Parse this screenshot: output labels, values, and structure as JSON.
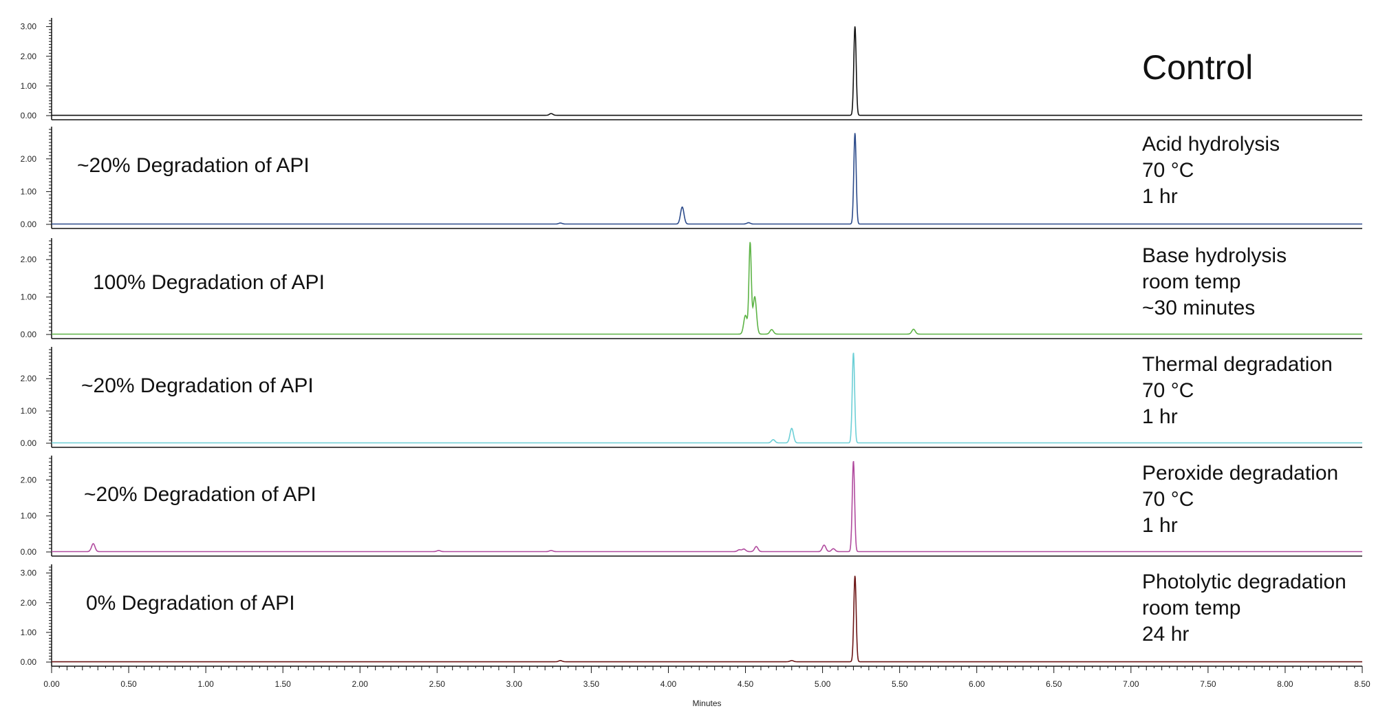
{
  "chart_data": {
    "type": "line",
    "xlabel": "Minutes",
    "xlim": [
      0,
      8.5
    ],
    "x_ticks": [
      "0.00",
      "0.50",
      "1.00",
      "1.50",
      "2.00",
      "2.50",
      "3.00",
      "3.50",
      "4.00",
      "4.50",
      "5.00",
      "5.50",
      "6.00",
      "6.50",
      "7.00",
      "7.50",
      "8.00",
      "8.50"
    ],
    "panels": [
      {
        "name": "Control",
        "conditions": [
          "Control"
        ],
        "degradation": "",
        "color": "#111111",
        "ylim": [
          0,
          3.2
        ],
        "y_ticks": [
          "0.00",
          "1.00",
          "2.00",
          "3.00"
        ],
        "peaks": [
          {
            "x": 3.24,
            "y": 0.06
          },
          {
            "x": 5.21,
            "y": 3.0
          }
        ]
      },
      {
        "name": "Acid hydrolysis",
        "conditions": [
          "Acid hydrolysis",
          "70 °C",
          "1 hr"
        ],
        "degradation": "~20% Degradation of API",
        "color": "#2b4a8a",
        "ylim": [
          0,
          2.9
        ],
        "y_ticks": [
          "0.00",
          "1.00",
          "2.00"
        ],
        "peaks": [
          {
            "x": 3.3,
            "y": 0.03
          },
          {
            "x": 4.09,
            "y": 0.52
          },
          {
            "x": 4.52,
            "y": 0.04
          },
          {
            "x": 5.21,
            "y": 2.78
          }
        ]
      },
      {
        "name": "Base hydrolysis",
        "conditions": [
          "Base hydrolysis",
          "room temp",
          "~30 minutes"
        ],
        "degradation": "100% Degradation of API",
        "color": "#5cb345",
        "ylim": [
          0,
          2.5
        ],
        "y_ticks": [
          "0.00",
          "1.00",
          "2.00"
        ],
        "peaks": [
          {
            "x": 4.5,
            "y": 0.5
          },
          {
            "x": 4.53,
            "y": 2.42
          },
          {
            "x": 4.56,
            "y": 1.0
          },
          {
            "x": 4.67,
            "y": 0.12
          },
          {
            "x": 5.59,
            "y": 0.13
          }
        ]
      },
      {
        "name": "Thermal degradation",
        "conditions": [
          "Thermal degradation",
          "70 °C",
          "1 hr"
        ],
        "degradation": "~20% Degradation of API",
        "color": "#6ccfd6",
        "ylim": [
          0,
          2.9
        ],
        "y_ticks": [
          "0.00",
          "1.00",
          "2.00"
        ],
        "peaks": [
          {
            "x": 4.68,
            "y": 0.1
          },
          {
            "x": 4.8,
            "y": 0.45
          },
          {
            "x": 5.2,
            "y": 2.8
          }
        ]
      },
      {
        "name": "Peroxide degradation",
        "conditions": [
          "Peroxide degradation",
          "70 °C",
          "1 hr"
        ],
        "degradation": "~20% Degradation of API",
        "color": "#b04a9e",
        "ylim": [
          0,
          2.6
        ],
        "y_ticks": [
          "0.00",
          "1.00",
          "2.00"
        ],
        "peaks": [
          {
            "x": 0.27,
            "y": 0.22
          },
          {
            "x": 2.51,
            "y": 0.03
          },
          {
            "x": 3.24,
            "y": 0.03
          },
          {
            "x": 4.46,
            "y": 0.05
          },
          {
            "x": 4.49,
            "y": 0.07
          },
          {
            "x": 4.57,
            "y": 0.14
          },
          {
            "x": 5.01,
            "y": 0.18
          },
          {
            "x": 5.07,
            "y": 0.08
          },
          {
            "x": 5.2,
            "y": 2.52
          }
        ]
      },
      {
        "name": "Photolytic degradation",
        "conditions": [
          "Photolytic degradation",
          "room temp",
          "24 hr"
        ],
        "degradation": "0% Degradation of API",
        "color": "#6b1414",
        "ylim": [
          0,
          3.2
        ],
        "y_ticks": [
          "0.00",
          "1.00",
          "2.00",
          "3.00"
        ],
        "peaks": [
          {
            "x": 3.3,
            "y": 0.04
          },
          {
            "x": 4.8,
            "y": 0.04
          },
          {
            "x": 5.21,
            "y": 2.9
          }
        ]
      }
    ]
  }
}
